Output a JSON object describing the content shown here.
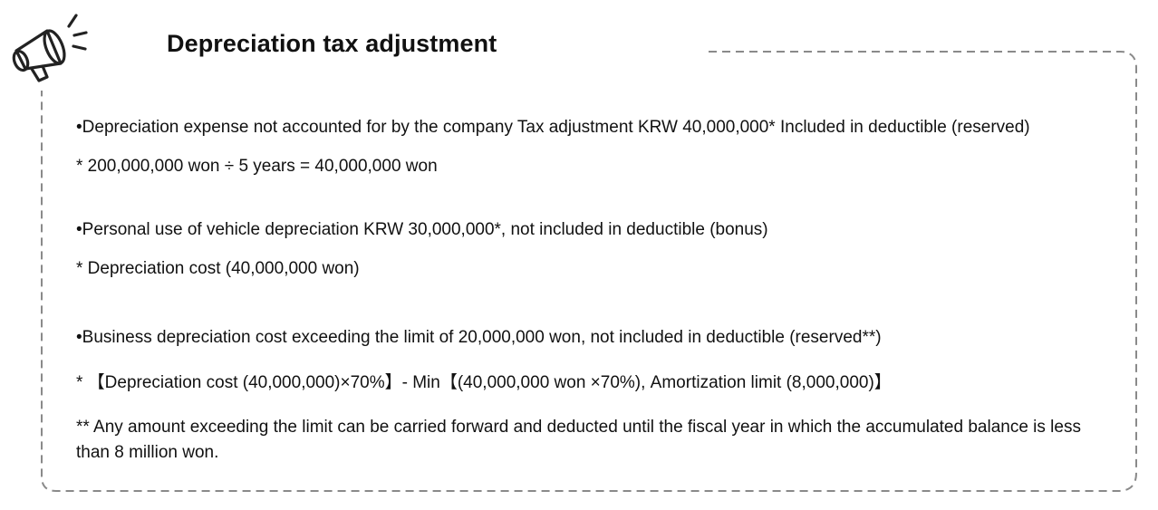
{
  "title": "Depreciation tax adjustment",
  "icons": {
    "header": "megaphone-icon"
  },
  "sections": [
    {
      "bullet": "•Depreciation expense not accounted for by the company Tax adjustment KRW 40,000,000* Included in deductible (reserved)",
      "notes": [
        "* 200,000,000 won ÷ 5 years = 40,000,000 won"
      ]
    },
    {
      "bullet": "•Personal use of vehicle depreciation KRW 30,000,000*, not included in deductible (bonus)",
      "notes": [
        "* Depreciation cost (40,000,000 won)"
      ]
    },
    {
      "bullet": "•Business depreciation cost exceeding the limit of 20,000,000 won, not included in deductible (reserved**)",
      "notes": [
        "* 【Depreciation cost (40,000,000)×70%】- Min【(40,000,000 won ×70%), Amortization limit (8,000,000)】",
        "** Any amount exceeding the limit can be carried forward and deducted until the fiscal year in which the accumulated balance is less than 8 million won."
      ]
    }
  ],
  "colors": {
    "border": "#8a8a8a",
    "text": "#111111"
  }
}
